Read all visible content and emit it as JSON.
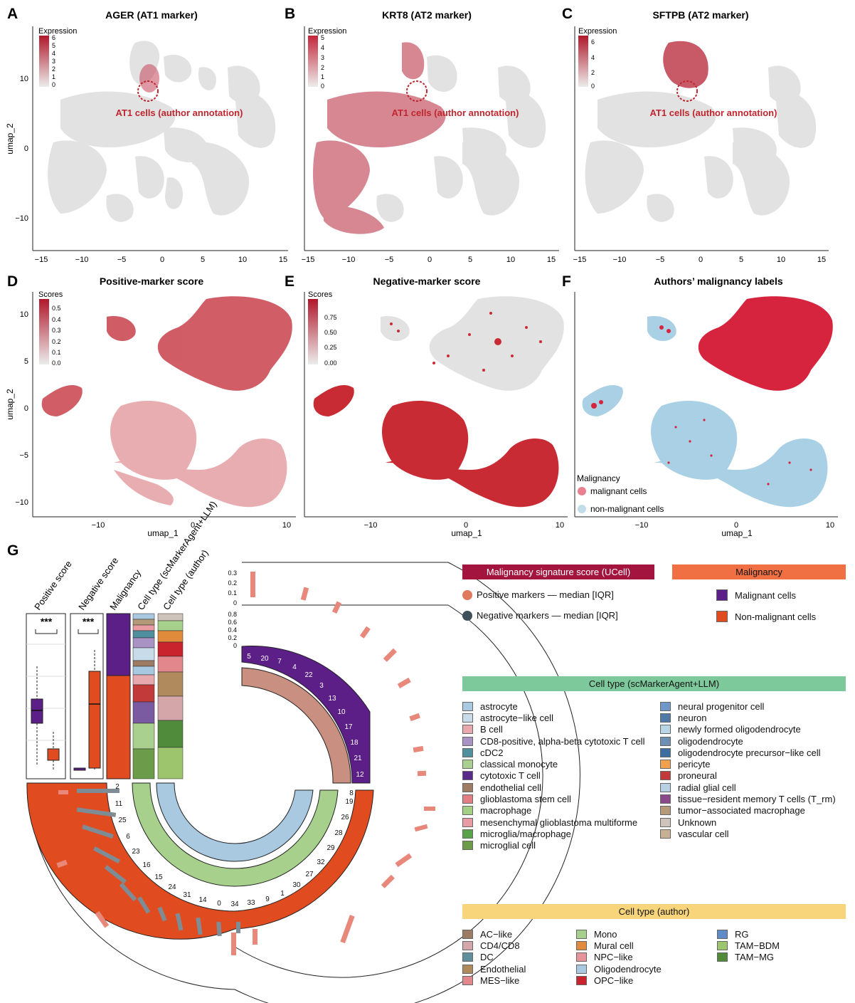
{
  "panels": {
    "A": {
      "letter": "A",
      "title": "AGER (AT1 marker)",
      "legend_title": "Expression",
      "legend_ticks": [
        "6",
        "5",
        "4",
        "3",
        "2",
        "1",
        "0"
      ],
      "annotation": "AT1 cells (author annotation)"
    },
    "B": {
      "letter": "B",
      "title": "KRT8 (AT2 marker)",
      "legend_title": "Expression",
      "legend_ticks": [
        "5",
        "4",
        "3",
        "2",
        "1",
        "0"
      ],
      "annotation": "AT1 cells (author annotation)"
    },
    "C": {
      "letter": "C",
      "title": "SFTPB (AT2 marker)",
      "legend_title": "Expression",
      "legend_ticks": [
        "6",
        "4",
        "2",
        "0"
      ],
      "annotation": "AT1 cells (author annotation)"
    },
    "D": {
      "letter": "D",
      "title": "Positive-marker score",
      "legend_title": "Scores",
      "legend_ticks": [
        "0.5",
        "0.4",
        "0.3",
        "0.2",
        "0.1",
        "0.0"
      ]
    },
    "E": {
      "letter": "E",
      "title": "Negative-marker score",
      "legend_title": "Scores",
      "legend_ticks": [
        "0.75",
        "0.50",
        "0.25",
        "0.00"
      ]
    },
    "F": {
      "letter": "F",
      "title": "Authors’ malignancy labels",
      "legend_title": "Malignancy",
      "legend_items": [
        "malignant cells",
        "non-malignant cells"
      ]
    },
    "G": {
      "letter": "G"
    }
  },
  "axes": {
    "row1": {
      "ylabel": "umap_2",
      "yticks": [
        "10",
        "0",
        "−10"
      ],
      "xticks": [
        "−15",
        "−10",
        "−5",
        "0",
        "5",
        "10",
        "15"
      ]
    },
    "row2": {
      "ylabel": "umap_2",
      "xlabel": "umap_1",
      "yticks": [
        "10",
        "5",
        "0",
        "−5",
        "−10"
      ],
      "xticks": [
        "−10",
        "0",
        "10"
      ]
    }
  },
  "g_panel": {
    "column_labels": [
      "Positive score",
      "Negative score",
      "Malignancy",
      "Cell type (scMarkerAgent+LLM)",
      "Cell type (author)"
    ],
    "significance": "***",
    "inner_yticks_top": [
      "0.3",
      "0.2",
      "0.1",
      "0"
    ],
    "inner_yticks_bottom": [
      "0.8",
      "0.6",
      "0.4",
      "0.2",
      "0"
    ],
    "malignant_clusters": [
      "5",
      "20",
      "7",
      "4",
      "22",
      "3",
      "13",
      "10",
      "17",
      "18",
      "21",
      "12"
    ],
    "nonmalignant_clusters": [
      "2",
      "11",
      "25",
      "6",
      "23",
      "16",
      "15",
      "24",
      "31",
      "14",
      "0",
      "34",
      "33",
      "9",
      "1",
      "30",
      "27",
      "32",
      "29",
      "28",
      "26",
      "19",
      "8"
    ]
  },
  "legends": {
    "ucell_header": "Malignancy signature score (UCell)",
    "ucell_items": [
      "Positive markers — median [IQR]",
      "Negative markers — median [IQR]"
    ],
    "malig_header": "Malignancy",
    "malig_items": [
      "Malignant cells",
      "Non-malignant cells"
    ],
    "ctype_header": "Cell type (scMarkerAgent+LLM)",
    "ctype_col1": [
      "astrocyte",
      "astrocyte−like cell",
      "B cell",
      "CD8-positive, alpha-beta cytotoxic T cell",
      "cDC2",
      "classical monocyte",
      "cytotoxic T cell",
      "endothelial cell",
      "glioblastoma stem cell",
      "macrophage",
      "mesenchymal glioblastoma multiforme",
      "microglia/macrophage",
      "microglial cell"
    ],
    "ctype_col2": [
      "neural progenitor cell",
      "neuron",
      "newly formed oligodendrocyte",
      "oligodendrocyte",
      "oligodendrocyte precursor−like cell",
      "pericyte",
      "proneural",
      "radial glial cell",
      "tissue−resident memory T cells (T_rm)",
      "tumor−associated macrophage",
      "Unknown",
      "vascular cell"
    ],
    "author_header": "Cell type (author)",
    "author_col1": [
      "AC−like",
      "CD4/CD8",
      "DC",
      "Endothelial",
      "MES−like"
    ],
    "author_col2": [
      "Mono",
      "Mural cell",
      "NPC−like",
      "Oligodendrocyte",
      "OPC−like"
    ],
    "author_col3": [
      "RG",
      "TAM−BDM",
      "TAM−MG"
    ]
  },
  "colors": {
    "expr_high": "#b0182b",
    "expr_low": "#e6e6e6",
    "malignant_red": "#d6243f",
    "nonmalig_blue": "#a9d0e4",
    "purple": "#5b1f87",
    "orange": "#e04c1f",
    "ucell_header_bg": "#a3153f",
    "malig_header_bg": "#f07043",
    "ctype_header_bg": "#7dc99c",
    "author_header_bg": "#f8d57a",
    "box_pos": "#e8887a",
    "box_neg": "#6e7f8a",
    "ctype_col1": [
      "#a9c9e0",
      "#c7dbe9",
      "#e7a9ad",
      "#a993c4",
      "#4f8f9e",
      "#a9d08e",
      "#5a2a8a",
      "#9e7b63",
      "#e27f86",
      "#a5cf85",
      "#e89ba3",
      "#59a34b",
      "#6c9b4a"
    ],
    "ctype_col2": [
      "#6f97c7",
      "#4f7aa6",
      "#b9d6e6",
      "#6d8fb3",
      "#3c6e9f",
      "#f0a24e",
      "#c23a3a",
      "#b7d0e3",
      "#8a4a8a",
      "#b59a7a",
      "#cfc4bb",
      "#c8b095"
    ],
    "author_col1": [
      "#9b7b63",
      "#d4a6aa",
      "#5f8f9b",
      "#b08a5c",
      "#e2888c"
    ],
    "author_col2": [
      "#a6d08b",
      "#e08a3c",
      "#e7939a",
      "#a9c9e0",
      "#c9242d"
    ],
    "author_col3": [
      "#5f8cc7",
      "#9cc56e",
      "#4f8b3a"
    ]
  }
}
